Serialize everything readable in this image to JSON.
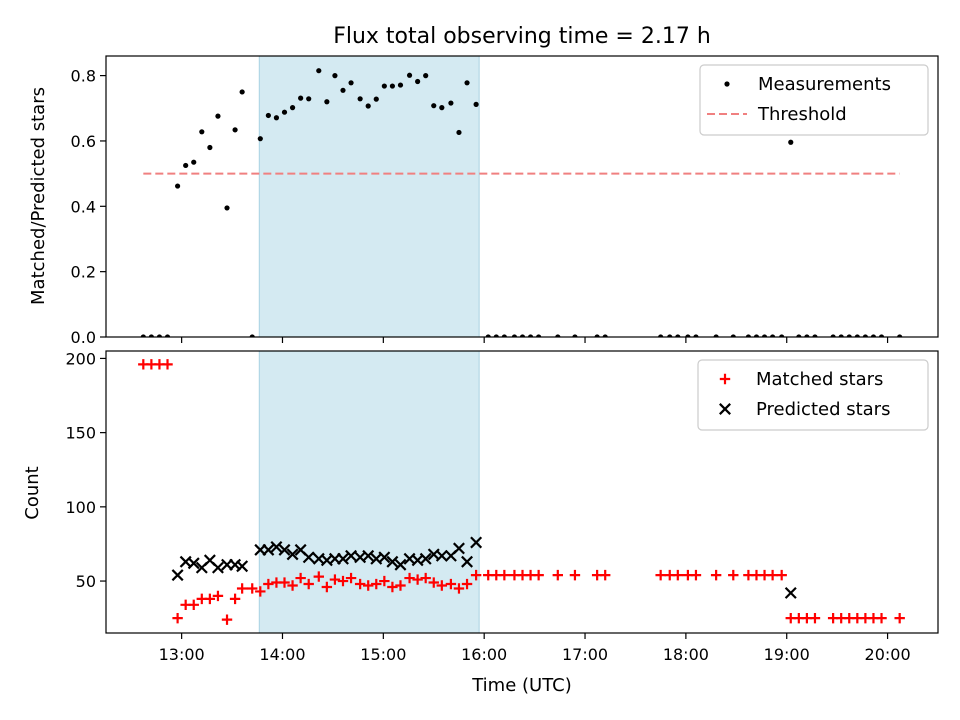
{
  "chart_data": [
    {
      "type": "scatter",
      "title": "Flux total observing time = 2.17 h",
      "ylabel": "Matched/Predicted stars",
      "xlabel": "",
      "xlim": [
        12.25,
        20.5
      ],
      "ylim": [
        0,
        0.86
      ],
      "yticks": [
        0.0,
        0.2,
        0.4,
        0.6,
        0.8
      ],
      "ytick_labels": [
        "0.0",
        "0.2",
        "0.4",
        "0.6",
        "0.8"
      ],
      "xticks": [
        13,
        14,
        15,
        16,
        17,
        18,
        19,
        20
      ],
      "shaded_span": [
        13.77,
        15.95
      ],
      "shade_color": "#d4eaf2",
      "legend_position": "top-right",
      "series": [
        {
          "name": "Measurements",
          "marker": "dot",
          "color": "#000000",
          "points": [
            [
              12.62,
              0
            ],
            [
              12.7,
              0
            ],
            [
              12.78,
              0
            ],
            [
              12.86,
              0
            ],
            [
              12.96,
              0.462
            ],
            [
              13.04,
              0.525
            ],
            [
              13.12,
              0.535
            ],
            [
              13.2,
              0.628
            ],
            [
              13.28,
              0.58
            ],
            [
              13.36,
              0.676
            ],
            [
              13.45,
              0.395
            ],
            [
              13.53,
              0.634
            ],
            [
              13.6,
              0.75
            ],
            [
              13.7,
              0
            ],
            [
              13.78,
              0.607
            ],
            [
              13.86,
              0.678
            ],
            [
              13.94,
              0.671
            ],
            [
              14.02,
              0.688
            ],
            [
              14.1,
              0.702
            ],
            [
              14.18,
              0.731
            ],
            [
              14.26,
              0.729
            ],
            [
              14.36,
              0.815
            ],
            [
              14.44,
              0.72
            ],
            [
              14.52,
              0.8
            ],
            [
              14.6,
              0.755
            ],
            [
              14.68,
              0.778
            ],
            [
              14.77,
              0.729
            ],
            [
              14.85,
              0.707
            ],
            [
              14.93,
              0.728
            ],
            [
              15.01,
              0.768
            ],
            [
              15.09,
              0.768
            ],
            [
              15.17,
              0.771
            ],
            [
              15.26,
              0.801
            ],
            [
              15.34,
              0.782
            ],
            [
              15.42,
              0.8
            ],
            [
              15.5,
              0.708
            ],
            [
              15.58,
              0.702
            ],
            [
              15.67,
              0.716
            ],
            [
              15.75,
              0.626
            ],
            [
              15.83,
              0.778
            ],
            [
              15.92,
              0.712
            ],
            [
              16.04,
              0
            ],
            [
              16.12,
              0
            ],
            [
              16.2,
              0
            ],
            [
              16.3,
              0
            ],
            [
              16.38,
              0
            ],
            [
              16.46,
              0
            ],
            [
              16.54,
              0
            ],
            [
              16.73,
              0
            ],
            [
              16.9,
              0
            ],
            [
              17.12,
              0
            ],
            [
              17.2,
              0
            ],
            [
              17.75,
              0
            ],
            [
              17.84,
              0
            ],
            [
              17.92,
              0
            ],
            [
              18.02,
              0
            ],
            [
              18.1,
              0
            ],
            [
              18.3,
              0
            ],
            [
              18.47,
              0
            ],
            [
              18.62,
              0
            ],
            [
              18.7,
              0
            ],
            [
              18.78,
              0
            ],
            [
              18.86,
              0
            ],
            [
              18.95,
              0
            ],
            [
              19.04,
              0.596
            ],
            [
              19.12,
              0
            ],
            [
              19.2,
              0
            ],
            [
              19.28,
              0
            ],
            [
              19.46,
              0
            ],
            [
              19.54,
              0
            ],
            [
              19.62,
              0
            ],
            [
              19.7,
              0
            ],
            [
              19.78,
              0
            ],
            [
              19.86,
              0
            ],
            [
              19.94,
              0
            ],
            [
              20.12,
              0
            ]
          ]
        },
        {
          "name": "Threshold",
          "marker": "dashed-line",
          "color": "#f08080",
          "points": [
            [
              12.62,
              0.5
            ],
            [
              20.12,
              0.5
            ]
          ]
        }
      ]
    },
    {
      "type": "scatter",
      "title": "",
      "ylabel": "Count",
      "xlabel": "Time (UTC)",
      "xlim": [
        12.25,
        20.5
      ],
      "ylim": [
        15,
        205
      ],
      "yticks": [
        50,
        100,
        150,
        200
      ],
      "ytick_labels": [
        "50",
        "100",
        "150",
        "200"
      ],
      "xticks": [
        13,
        14,
        15,
        16,
        17,
        18,
        19,
        20
      ],
      "xtick_labels": [
        "13:00",
        "14:00",
        "15:00",
        "16:00",
        "17:00",
        "18:00",
        "19:00",
        "20:00"
      ],
      "shaded_span": [
        13.77,
        15.95
      ],
      "shade_color": "#d4eaf2",
      "legend_position": "top-right",
      "series": [
        {
          "name": "Matched stars",
          "marker": "plus",
          "color": "#ff0000",
          "points": [
            [
              12.62,
              196
            ],
            [
              12.7,
              196
            ],
            [
              12.78,
              196
            ],
            [
              12.86,
              196
            ],
            [
              12.96,
              25
            ],
            [
              13.04,
              34
            ],
            [
              13.12,
              34
            ],
            [
              13.2,
              38
            ],
            [
              13.28,
              38
            ],
            [
              13.36,
              40
            ],
            [
              13.45,
              24
            ],
            [
              13.53,
              38
            ],
            [
              13.6,
              45
            ],
            [
              13.7,
              45
            ],
            [
              13.78,
              43
            ],
            [
              13.86,
              48
            ],
            [
              13.94,
              49
            ],
            [
              14.02,
              49
            ],
            [
              14.1,
              47
            ],
            [
              14.18,
              52
            ],
            [
              14.26,
              48
            ],
            [
              14.36,
              53
            ],
            [
              14.44,
              46
            ],
            [
              14.52,
              51
            ],
            [
              14.6,
              50
            ],
            [
              14.68,
              52
            ],
            [
              14.77,
              48
            ],
            [
              14.85,
              47
            ],
            [
              14.93,
              48
            ],
            [
              15.01,
              50
            ],
            [
              15.09,
              46
            ],
            [
              15.17,
              47
            ],
            [
              15.26,
              52
            ],
            [
              15.34,
              51
            ],
            [
              15.42,
              52
            ],
            [
              15.5,
              49
            ],
            [
              15.58,
              47
            ],
            [
              15.67,
              48
            ],
            [
              15.75,
              45
            ],
            [
              15.83,
              48
            ],
            [
              15.92,
              54
            ],
            [
              16.04,
              54
            ],
            [
              16.12,
              54
            ],
            [
              16.2,
              54
            ],
            [
              16.3,
              54
            ],
            [
              16.38,
              54
            ],
            [
              16.46,
              54
            ],
            [
              16.54,
              54
            ],
            [
              16.73,
              54
            ],
            [
              16.9,
              54
            ],
            [
              17.12,
              54
            ],
            [
              17.2,
              54
            ],
            [
              17.75,
              54
            ],
            [
              17.84,
              54
            ],
            [
              17.92,
              54
            ],
            [
              18.02,
              54
            ],
            [
              18.1,
              54
            ],
            [
              18.3,
              54
            ],
            [
              18.47,
              54
            ],
            [
              18.62,
              54
            ],
            [
              18.7,
              54
            ],
            [
              18.78,
              54
            ],
            [
              18.86,
              54
            ],
            [
              18.95,
              54
            ],
            [
              19.04,
              25
            ],
            [
              19.12,
              25
            ],
            [
              19.2,
              25
            ],
            [
              19.28,
              25
            ],
            [
              19.46,
              25
            ],
            [
              19.54,
              25
            ],
            [
              19.62,
              25
            ],
            [
              19.7,
              25
            ],
            [
              19.78,
              25
            ],
            [
              19.86,
              25
            ],
            [
              19.94,
              25
            ],
            [
              20.12,
              25
            ]
          ]
        },
        {
          "name": "Predicted stars",
          "marker": "x",
          "color": "#000000",
          "points": [
            [
              12.96,
              54
            ],
            [
              13.04,
              63
            ],
            [
              13.12,
              62
            ],
            [
              13.2,
              59
            ],
            [
              13.28,
              64
            ],
            [
              13.36,
              59
            ],
            [
              13.45,
              61
            ],
            [
              13.53,
              61
            ],
            [
              13.6,
              60
            ],
            [
              13.78,
              71
            ],
            [
              13.86,
              71
            ],
            [
              13.94,
              73
            ],
            [
              14.02,
              71
            ],
            [
              14.1,
              68
            ],
            [
              14.18,
              71
            ],
            [
              14.26,
              66
            ],
            [
              14.36,
              65
            ],
            [
              14.44,
              64
            ],
            [
              14.52,
              65
            ],
            [
              14.6,
              65
            ],
            [
              14.68,
              67
            ],
            [
              14.77,
              66
            ],
            [
              14.85,
              67
            ],
            [
              14.93,
              65
            ],
            [
              15.01,
              66
            ],
            [
              15.09,
              63
            ],
            [
              15.17,
              61
            ],
            [
              15.26,
              65
            ],
            [
              15.34,
              64
            ],
            [
              15.42,
              65
            ],
            [
              15.5,
              68
            ],
            [
              15.58,
              67
            ],
            [
              15.67,
              67
            ],
            [
              15.75,
              72
            ],
            [
              15.83,
              63
            ],
            [
              15.92,
              76
            ],
            [
              19.04,
              42
            ]
          ]
        }
      ]
    }
  ]
}
